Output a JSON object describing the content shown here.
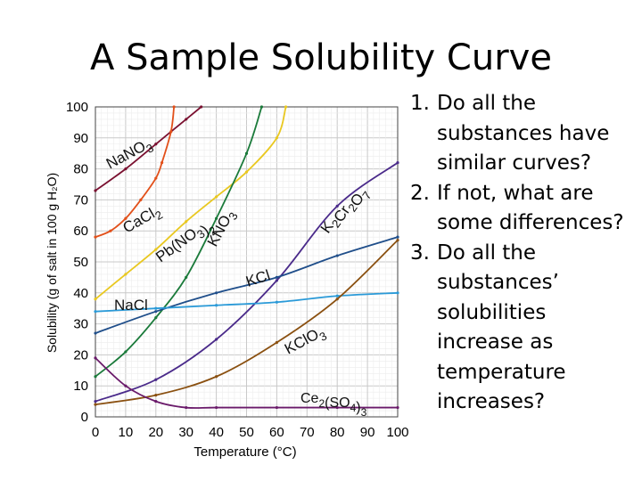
{
  "title": "A Sample Solubility Curve",
  "questions": [
    {
      "number": "1.",
      "text": "Do all the substances have similar curves?"
    },
    {
      "number": "2.",
      "text": "If not, what are some differences?"
    },
    {
      "number": "3.",
      "text": "Do all the substances’ solubilities increase as temperature increases?"
    }
  ],
  "chart_data": {
    "type": "line",
    "xlabel": "Temperature (°C)",
    "ylabel": "Solubility (g of salt in 100 g H₂O)",
    "xlim": [
      0,
      100
    ],
    "ylim": [
      0,
      100
    ],
    "xticks": [
      "0",
      "10",
      "20",
      "30",
      "40",
      "50",
      "60",
      "70",
      "80",
      "90",
      "100"
    ],
    "yticks": [
      "0",
      "10",
      "20",
      "30",
      "40",
      "50",
      "60",
      "70",
      "80",
      "90",
      "100"
    ],
    "grid": true,
    "series": [
      {
        "name": "NaNO3",
        "color": "#7a1030",
        "x": [
          0,
          10,
          20,
          30,
          35
        ],
        "y": [
          73,
          80,
          88,
          96,
          100
        ],
        "label": {
          "base": "NaNO",
          "sub": "3",
          "tail": ""
        }
      },
      {
        "name": "CaCl2",
        "color": "#e2501a",
        "x": [
          0,
          5,
          10,
          15,
          20,
          22,
          25,
          26
        ],
        "y": [
          58,
          60,
          64,
          70,
          77,
          82,
          92,
          100
        ],
        "label": {
          "base": "CaCl",
          "sub": "2",
          "tail": ""
        }
      },
      {
        "name": "Pb(NO3)2",
        "color": "#e9c820",
        "x": [
          0,
          10,
          20,
          30,
          40,
          50,
          60,
          63
        ],
        "y": [
          38,
          46,
          54,
          63,
          71,
          79,
          90,
          100
        ],
        "label": {
          "base": "Pb(NO",
          "sub": "3",
          "tail": ")",
          "sub2": "2"
        }
      },
      {
        "name": "KNO3",
        "color": "#1a7a3a",
        "x": [
          0,
          10,
          20,
          30,
          40,
          50,
          55
        ],
        "y": [
          13,
          21,
          32,
          45,
          64,
          85,
          100
        ],
        "label": {
          "base": "KNO",
          "sub": "3",
          "tail": ""
        }
      },
      {
        "name": "K2Cr2O7",
        "color": "#4a2a8a",
        "x": [
          0,
          20,
          40,
          60,
          80,
          100
        ],
        "y": [
          5,
          12,
          25,
          44,
          68,
          82
        ],
        "label": {
          "base": "K",
          "sub": "2",
          "tail": "Cr",
          "sub2": "2",
          "tail2": "O",
          "sub3": "7"
        }
      },
      {
        "name": "KCl",
        "color": "#1f4e8a",
        "x": [
          0,
          20,
          40,
          60,
          80,
          100
        ],
        "y": [
          27,
          34,
          40,
          45,
          52,
          58
        ],
        "label": {
          "base": "KCl",
          "sub": "",
          "tail": ""
        }
      },
      {
        "name": "NaCl",
        "color": "#2a9ad8",
        "x": [
          0,
          20,
          40,
          60,
          80,
          100
        ],
        "y": [
          34,
          35,
          36,
          37,
          39,
          40
        ],
        "label": {
          "base": "NaCl",
          "sub": "",
          "tail": ""
        }
      },
      {
        "name": "KClO3",
        "color": "#8a5010",
        "x": [
          0,
          20,
          40,
          60,
          80,
          100
        ],
        "y": [
          4,
          7,
          13,
          24,
          38,
          57
        ],
        "label": {
          "base": "KClO",
          "sub": "3",
          "tail": ""
        }
      },
      {
        "name": "Ce2(SO4)3",
        "color": "#6a1a6a",
        "x": [
          0,
          10,
          20,
          30,
          40,
          60,
          80,
          100
        ],
        "y": [
          19,
          10,
          5,
          3,
          3,
          3,
          3,
          3
        ],
        "label": {
          "base": "Ce",
          "sub": "2",
          "tail": "(SO",
          "sub2": "4",
          "tail2": ")",
          "sub3": "3"
        }
      }
    ]
  }
}
